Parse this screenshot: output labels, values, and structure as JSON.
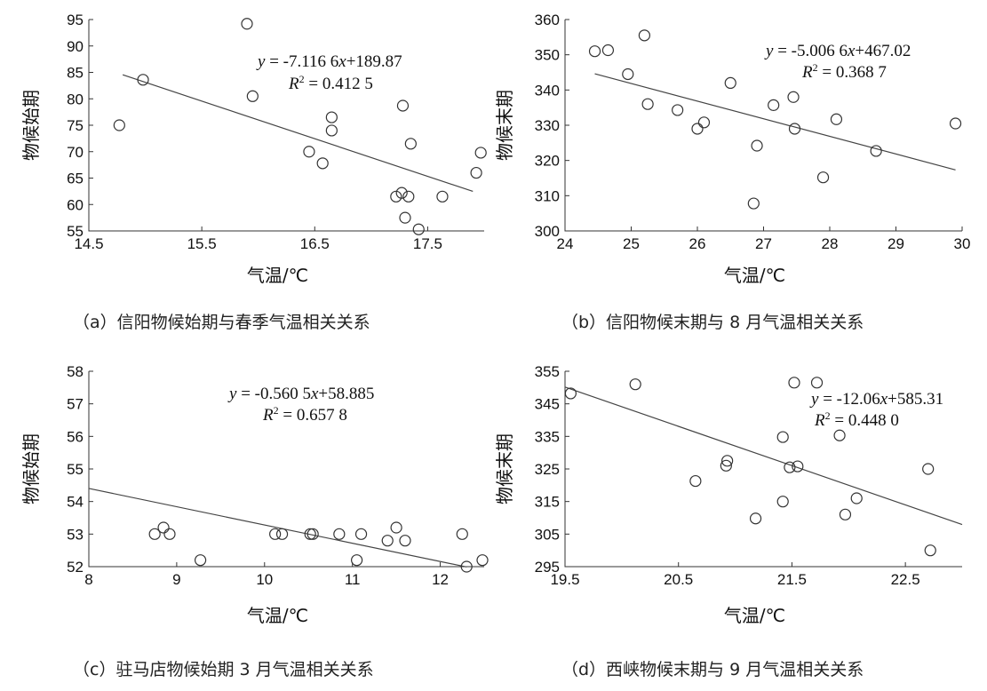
{
  "chart_data": [
    {
      "type": "scatter",
      "caption": "（a）信阳物候始期与春季气温相关关系",
      "xlabel": "气温/℃",
      "ylabel": "物候始期",
      "xlim": [
        14.5,
        18.0
      ],
      "ylim": [
        55,
        95
      ],
      "xticks": [
        "14.5",
        "15.5",
        "16.5",
        "17.5"
      ],
      "yticks": [
        "55",
        "60",
        "65",
        "70",
        "75",
        "80",
        "85",
        "90",
        "95"
      ],
      "equation": {
        "y": "y",
        "rest1": " = -7.116 6",
        "x": "x",
        "rest2": "+189.87"
      },
      "r2": {
        "R": "R",
        "sup": "2",
        "rest": " = 0.412 5"
      },
      "trend": {
        "slope": -7.1166,
        "intercept": 189.87,
        "x_range": [
          14.8,
          17.9
        ]
      },
      "points": [
        [
          14.77,
          75.0
        ],
        [
          14.98,
          83.6
        ],
        [
          15.9,
          94.2
        ],
        [
          15.95,
          80.5
        ],
        [
          16.45,
          70.0
        ],
        [
          16.57,
          67.8
        ],
        [
          16.65,
          76.5
        ],
        [
          16.65,
          74.0
        ],
        [
          17.22,
          61.5
        ],
        [
          17.27,
          62.2
        ],
        [
          17.28,
          78.7
        ],
        [
          17.3,
          57.5
        ],
        [
          17.33,
          61.5
        ],
        [
          17.35,
          71.5
        ],
        [
          17.42,
          55.3
        ],
        [
          17.63,
          61.5
        ],
        [
          17.93,
          66.0
        ],
        [
          17.97,
          69.8
        ]
      ]
    },
    {
      "type": "scatter",
      "caption": "（b）信阳物候末期与 8 月气温相关关系",
      "xlabel": "气温/℃",
      "ylabel": "物候末期",
      "xlim": [
        24,
        30
      ],
      "ylim": [
        300,
        360
      ],
      "xticks": [
        "24",
        "25",
        "26",
        "27",
        "28",
        "29",
        "30"
      ],
      "yticks": [
        "300",
        "310",
        "320",
        "330",
        "340",
        "350",
        "360"
      ],
      "equation": {
        "y": "y",
        "rest1": " = -5.006 6",
        "x": "x",
        "rest2": "+467.02"
      },
      "r2": {
        "R": "R",
        "sup": "2",
        "rest": " = 0.368 7"
      },
      "trend": {
        "slope": -5.0066,
        "intercept": 467.02,
        "x_range": [
          24.45,
          29.9
        ]
      },
      "points": [
        [
          24.45,
          351.0
        ],
        [
          24.65,
          351.3
        ],
        [
          24.95,
          344.5
        ],
        [
          25.2,
          355.5
        ],
        [
          25.25,
          336.0
        ],
        [
          25.7,
          334.3
        ],
        [
          26.0,
          329.0
        ],
        [
          26.1,
          330.8
        ],
        [
          26.5,
          342.0
        ],
        [
          26.85,
          307.8
        ],
        [
          26.9,
          324.2
        ],
        [
          27.15,
          335.7
        ],
        [
          27.45,
          338.0
        ],
        [
          27.47,
          329.0
        ],
        [
          27.9,
          315.2
        ],
        [
          28.1,
          331.7
        ],
        [
          28.7,
          322.7
        ],
        [
          29.9,
          330.5
        ]
      ]
    },
    {
      "type": "scatter",
      "caption": "（c）驻马店物候始期 3 月气温相关关系",
      "xlabel": "气温/℃",
      "ylabel": "物候始期",
      "xlim": [
        8,
        12.5
      ],
      "ylim": [
        52,
        58
      ],
      "xticks": [
        "8",
        "9",
        "10",
        "11",
        "12"
      ],
      "yticks": [
        "52",
        "53",
        "54",
        "55",
        "56",
        "57",
        "58"
      ],
      "equation": {
        "y": "y",
        "rest1": " = -0.560 5",
        "x": "x",
        "rest2": "+58.885"
      },
      "r2": {
        "R": "R",
        "sup": "2",
        "rest": " = 0.657 8"
      },
      "trend": {
        "slope": -0.5605,
        "intercept": 58.885,
        "x_range": [
          8.0,
          12.3
        ]
      },
      "points": [
        [
          8.75,
          53.0
        ],
        [
          8.85,
          53.2
        ],
        [
          8.92,
          53.0
        ],
        [
          9.27,
          52.2
        ],
        [
          10.12,
          53.0
        ],
        [
          10.2,
          53.0
        ],
        [
          10.52,
          53.0
        ],
        [
          10.55,
          53.0
        ],
        [
          10.85,
          53.0
        ],
        [
          11.05,
          52.2
        ],
        [
          11.1,
          53.0
        ],
        [
          11.4,
          52.8
        ],
        [
          11.5,
          53.2
        ],
        [
          11.6,
          52.8
        ],
        [
          12.25,
          53.0
        ],
        [
          12.3,
          52.0
        ],
        [
          12.48,
          52.2
        ]
      ]
    },
    {
      "type": "scatter",
      "caption": "（d）西峡物候末期与 9 月气温相关关系",
      "xlabel": "气温/℃",
      "ylabel": "物候末期",
      "xlim": [
        19.5,
        23.0
      ],
      "ylim": [
        295,
        355
      ],
      "xticks": [
        "19.5",
        "20.5",
        "21.5",
        "22.5"
      ],
      "yticks": [
        "295",
        "305",
        "315",
        "325",
        "335",
        "345",
        "355"
      ],
      "equation": {
        "y": "y",
        "rest1": " = -12.06",
        "x": "x",
        "rest2": "+585.31"
      },
      "r2": {
        "R": "R",
        "sup": "2",
        "rest": " = 0.448 0"
      },
      "trend": {
        "slope": -12.06,
        "intercept": 585.31,
        "x_range": [
          19.5,
          23.0
        ]
      },
      "points": [
        [
          19.55,
          348.2
        ],
        [
          20.12,
          351.0
        ],
        [
          20.65,
          321.3
        ],
        [
          20.92,
          326.0
        ],
        [
          20.93,
          327.5
        ],
        [
          21.18,
          309.8
        ],
        [
          21.42,
          315.0
        ],
        [
          21.42,
          334.8
        ],
        [
          21.48,
          325.5
        ],
        [
          21.52,
          351.5
        ],
        [
          21.55,
          325.8
        ],
        [
          21.72,
          351.5
        ],
        [
          21.92,
          335.3
        ],
        [
          21.97,
          311.0
        ],
        [
          22.07,
          316.0
        ],
        [
          22.7,
          325.0
        ],
        [
          22.72,
          300.0
        ]
      ]
    }
  ]
}
